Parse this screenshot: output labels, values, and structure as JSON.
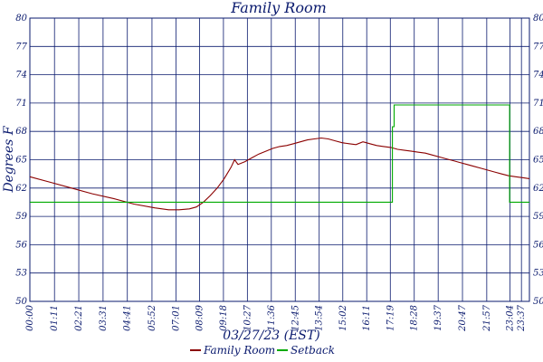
{
  "chart_data": {
    "type": "line",
    "title": "Family Room",
    "xlabel": "03/27/23 (EST)",
    "ylabel": "Degrees F",
    "ylim": [
      50,
      80
    ],
    "xlim": [
      0,
      1440
    ],
    "yticks": [
      "50",
      "53",
      "56",
      "59",
      "62",
      "65",
      "68",
      "71",
      "74",
      "77",
      "80"
    ],
    "xticks": [
      "00:00",
      "01:11",
      "02:21",
      "03:31",
      "04:41",
      "05:52",
      "07:01",
      "08:09",
      "09:18",
      "10:27",
      "11:36",
      "12:45",
      "13:54",
      "15:02",
      "16:11",
      "17:19",
      "18:28",
      "19:37",
      "20:47",
      "21:57",
      "23:04",
      "23:37"
    ],
    "xtick_minutes": [
      0,
      71,
      141,
      211,
      281,
      352,
      421,
      489,
      558,
      627,
      696,
      765,
      834,
      902,
      971,
      1039,
      1108,
      1177,
      1247,
      1317,
      1384,
      1417
    ],
    "grid": true,
    "legend_position": "bottom-center",
    "series": [
      {
        "name": "Family Room",
        "color": "#8b0000",
        "x": [
          0,
          60,
          120,
          180,
          240,
          300,
          360,
          400,
          430,
          460,
          480,
          500,
          520,
          540,
          560,
          580,
          590,
          600,
          620,
          640,
          660,
          680,
          700,
          720,
          740,
          760,
          780,
          800,
          820,
          840,
          860,
          880,
          900,
          920,
          940,
          960,
          970,
          980,
          1000,
          1020,
          1040,
          1060,
          1080,
          1100,
          1120,
          1140,
          1160,
          1180,
          1200,
          1220,
          1240,
          1260,
          1280,
          1300,
          1320,
          1340,
          1360,
          1380,
          1400,
          1420,
          1440
        ],
        "y": [
          63.2,
          62.6,
          62.0,
          61.4,
          60.9,
          60.3,
          59.9,
          59.7,
          59.7,
          59.8,
          60.0,
          60.5,
          61.2,
          62.0,
          63.0,
          64.2,
          65.0,
          64.5,
          64.8,
          65.2,
          65.6,
          65.9,
          66.2,
          66.4,
          66.5,
          66.7,
          66.9,
          67.1,
          67.2,
          67.3,
          67.2,
          67.0,
          66.8,
          66.7,
          66.6,
          66.9,
          66.8,
          66.7,
          66.5,
          66.4,
          66.3,
          66.1,
          66.0,
          65.9,
          65.8,
          65.7,
          65.5,
          65.3,
          65.1,
          64.9,
          64.7,
          64.5,
          64.3,
          64.1,
          63.9,
          63.7,
          63.5,
          63.3,
          63.2,
          63.1,
          63.0
        ]
      },
      {
        "name": "Setback",
        "color": "#00aa00",
        "x": [
          0,
          1045,
          1045,
          1050,
          1050,
          1383,
          1383,
          1440
        ],
        "y": [
          60.5,
          60.5,
          68.5,
          68.5,
          70.8,
          70.8,
          60.5,
          60.5
        ]
      }
    ]
  }
}
